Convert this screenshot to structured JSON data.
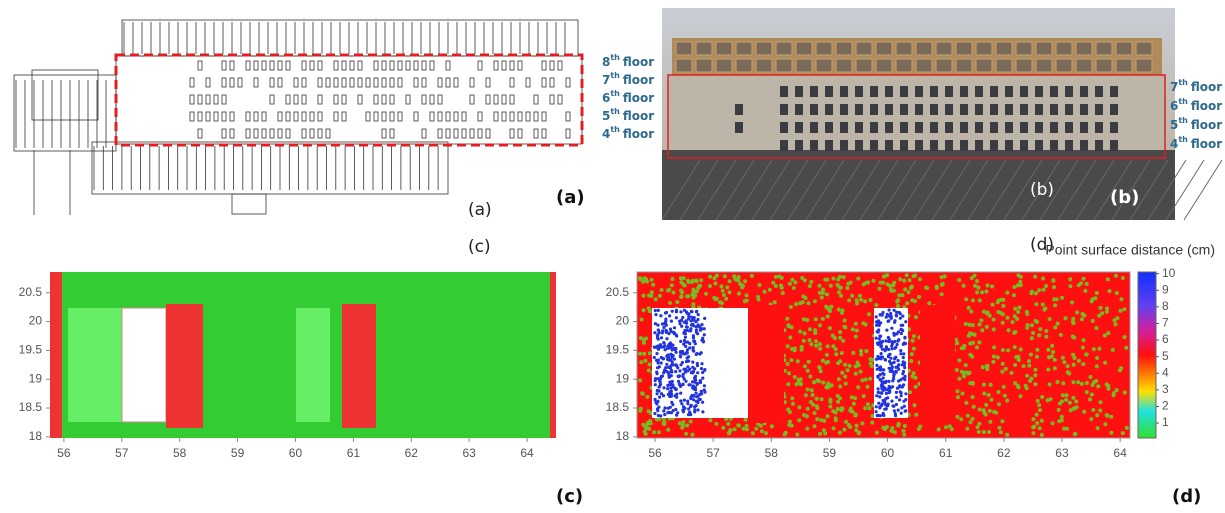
{
  "panel_a": {
    "floor_labels": [
      {
        "num": "8",
        "sup": "th",
        "word": "floor"
      },
      {
        "num": "7",
        "sup": "th",
        "word": "floor"
      },
      {
        "num": "6",
        "sup": "th",
        "word": "floor"
      },
      {
        "num": "5",
        "sup": "th",
        "word": "floor"
      },
      {
        "num": "4",
        "sup": "th",
        "word": "floor"
      }
    ],
    "caption": "(a)",
    "label": "(a)"
  },
  "panel_b": {
    "floor_labels": [
      {
        "num": "7",
        "sup": "th",
        "word": "floor"
      },
      {
        "num": "6",
        "sup": "th",
        "word": "floor"
      },
      {
        "num": "5",
        "sup": "th",
        "word": "floor"
      },
      {
        "num": "4",
        "sup": "th",
        "word": "floor"
      }
    ],
    "caption": "(b)",
    "label": "(b)"
  },
  "panel_c": {
    "caption": "(c)",
    "label": "(c)"
  },
  "panel_d": {
    "caption": "(d)",
    "label": "(d)",
    "colorbar_title": "Point surface distance (cm)",
    "clim": [
      0.1,
      10.1
    ],
    "colorbar_ticks": [
      1,
      2,
      3,
      4,
      5,
      6,
      7,
      8,
      9,
      10
    ]
  },
  "chart_data": [
    {
      "type": "map",
      "xlim": [
        55.76,
        64.5
      ],
      "ylim": [
        17.98,
        20.86
      ],
      "xticks": [
        56,
        57,
        58,
        59,
        60,
        61,
        62,
        63,
        64
      ],
      "yticks": [
        18,
        18.5,
        19,
        19.5,
        20,
        20.5
      ]
    },
    {
      "type": "map",
      "xlim": [
        55.69,
        64.17
      ],
      "ylim": [
        17.98,
        20.86
      ],
      "xticks": [
        56,
        57,
        58,
        59,
        60,
        61,
        62,
        63,
        64
      ],
      "yticks": [
        18,
        18.5,
        19,
        19.5,
        20,
        20.5
      ]
    }
  ]
}
